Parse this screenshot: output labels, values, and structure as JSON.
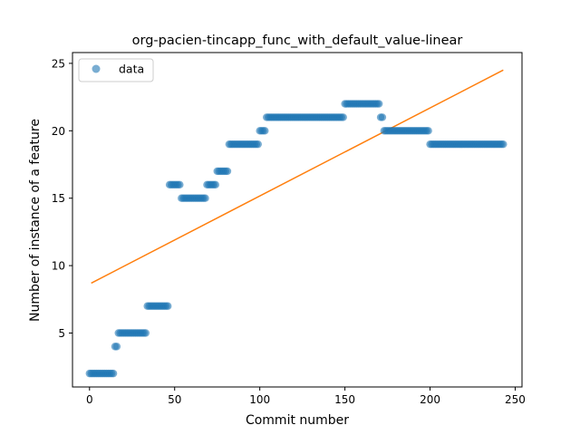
{
  "chart_data": {
    "type": "scatter",
    "title": "org-pacien-tincapp_func_with_default_value-linear",
    "xlabel": "Commit number",
    "ylabel": "Number of instance of a feature",
    "xlim": [
      -10,
      254
    ],
    "ylim": [
      1,
      25.8
    ],
    "xticks": [
      0,
      50,
      100,
      150,
      200,
      250
    ],
    "yticks": [
      5,
      10,
      15,
      20,
      25
    ],
    "legend": {
      "position": "top-left",
      "entries": [
        "data"
      ]
    },
    "colors": {
      "data": "#1f77b4",
      "fit": "#ff7f0e"
    },
    "series": [
      {
        "name": "data",
        "kind": "points",
        "runs": [
          {
            "from": 0,
            "to": 15,
            "y": 2
          },
          {
            "from": 15,
            "to": 17,
            "y": 4
          },
          {
            "from": 17,
            "to": 34,
            "y": 5
          },
          {
            "from": 34,
            "to": 47,
            "y": 7
          },
          {
            "from": 47,
            "to": 54,
            "y": 16
          },
          {
            "from": 54,
            "to": 69,
            "y": 15
          },
          {
            "from": 69,
            "to": 75,
            "y": 16
          },
          {
            "from": 75,
            "to": 82,
            "y": 17
          },
          {
            "from": 82,
            "to": 100,
            "y": 19
          },
          {
            "from": 100,
            "to": 104,
            "y": 20
          },
          {
            "from": 104,
            "to": 150,
            "y": 21
          },
          {
            "from": 150,
            "to": 171,
            "y": 22
          },
          {
            "from": 171,
            "to": 173,
            "y": 21
          },
          {
            "from": 173,
            "to": 200,
            "y": 20
          },
          {
            "from": 200,
            "to": 244,
            "y": 19
          }
        ]
      },
      {
        "kind": "line",
        "x": [
          1,
          243
        ],
        "y": [
          8.7,
          24.5
        ]
      }
    ]
  }
}
